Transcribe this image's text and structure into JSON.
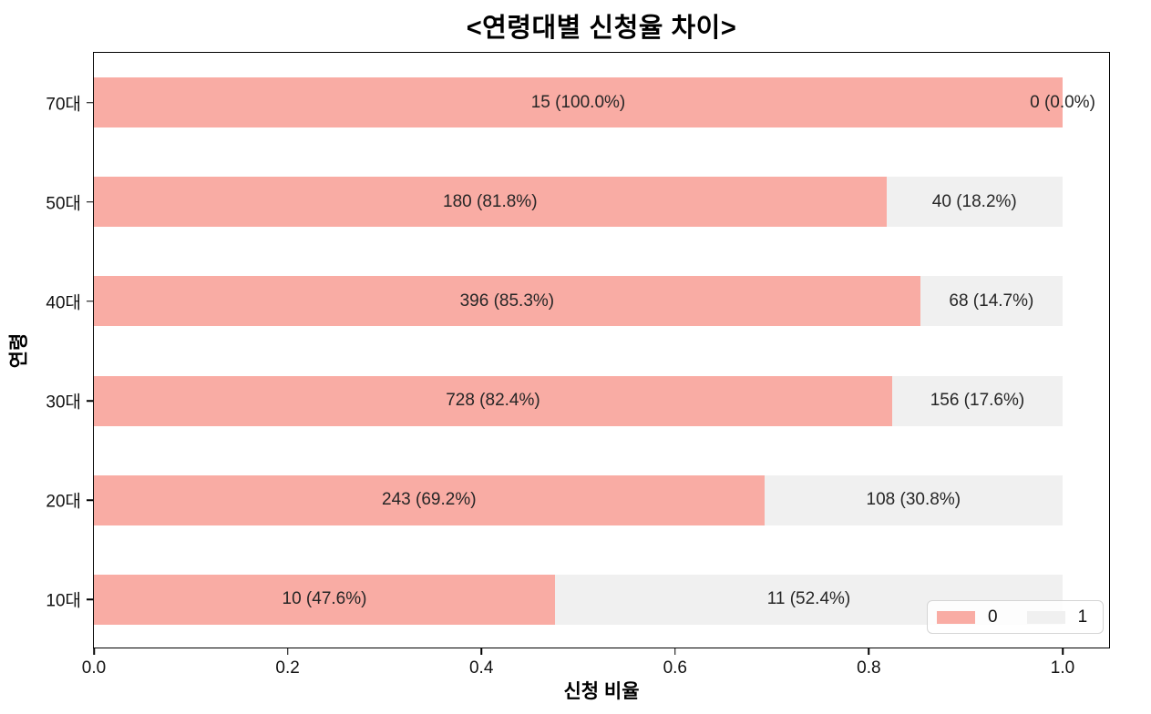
{
  "chart_data": {
    "type": "bar",
    "orientation": "horizontal-stacked",
    "title": "<연령대별 신청율 차이>",
    "xlabel": "신청 비율",
    "ylabel": "연령",
    "categories": [
      "70대",
      "50대",
      "40대",
      "30대",
      "20대",
      "10대"
    ],
    "series": [
      {
        "name": "0",
        "color": "#f9aca4",
        "counts": [
          15,
          180,
          396,
          728,
          243,
          10
        ],
        "fractions": [
          1.0,
          0.818,
          0.853,
          0.824,
          0.692,
          0.476
        ],
        "labels": [
          "15 (100.0%)",
          "180 (81.8%)",
          "396 (85.3%)",
          "728 (82.4%)",
          "243 (69.2%)",
          "10 (47.6%)"
        ]
      },
      {
        "name": "1",
        "color": "#f0f0f0",
        "counts": [
          0,
          40,
          68,
          156,
          108,
          11
        ],
        "fractions": [
          0.0,
          0.182,
          0.147,
          0.176,
          0.308,
          0.524
        ],
        "labels": [
          "0 (0.0%)",
          "40 (18.2%)",
          "68 (14.7%)",
          "156 (17.6%)",
          "108 (30.8%)",
          "11 (52.4%)"
        ]
      }
    ],
    "x_ticks": [
      "0.0",
      "0.2",
      "0.4",
      "0.6",
      "0.8",
      "1.0"
    ],
    "xlim": [
      0,
      1.05
    ],
    "grid": false,
    "legend": {
      "position": "lower right",
      "entries": [
        "0",
        "1"
      ]
    }
  }
}
